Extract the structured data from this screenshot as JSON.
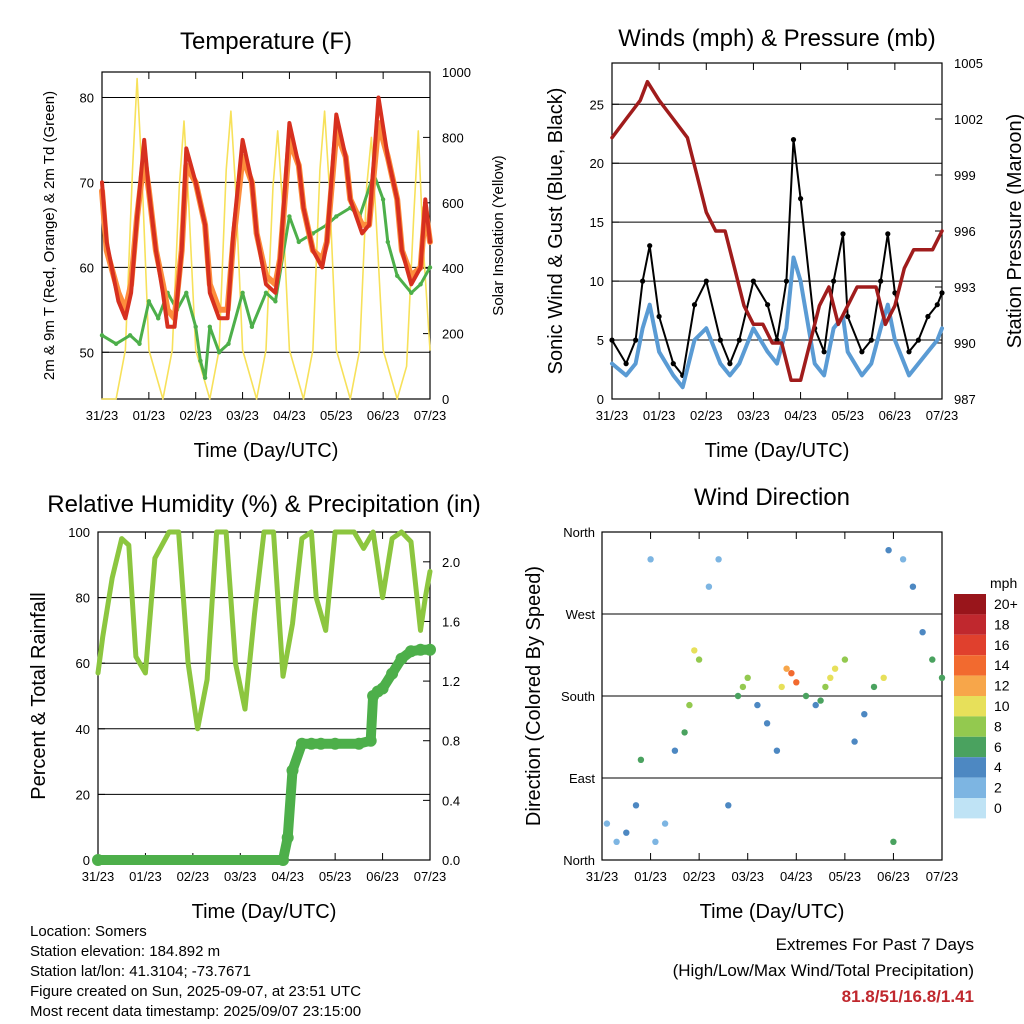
{
  "x_ticks": [
    "31/23",
    "01/23",
    "02/23",
    "03/23",
    "04/23",
    "05/23",
    "06/23",
    "07/23"
  ],
  "colors": {
    "temp2m": "#d7301f",
    "temp9m": "#fd8d3c",
    "dewpoint": "#4daf4a",
    "solar": "#f7e15a",
    "wind": "#5a9bd4",
    "gust": "#000000",
    "pressure": "#a01c1c",
    "rh": "#8cc63f",
    "precip": "#4daf4a"
  },
  "panels": {
    "temperature": {
      "title": "Temperature (F)",
      "xlabel": "Time (Day/UTC)",
      "ylabel_left": "2m & 9m T (Red, Orange) & 2m Td (Green)",
      "ylabel_right": "Solar Insolation (Yellow)"
    },
    "winds": {
      "title": "Winds (mph) & Pressure (mb)",
      "xlabel": "Time (Day/UTC)",
      "ylabel_left": "Sonic Wind & Gust (Blue, Black)",
      "ylabel_right": "Station Pressure (Maroon)"
    },
    "humidity": {
      "title": "Relative Humidity (%) & Precipitation (in)",
      "xlabel": "Time (Day/UTC)",
      "ylabel_left": "Percent & Total Rainfall"
    },
    "direction": {
      "title": "Wind Direction",
      "xlabel": "Time (Day/UTC)",
      "ylabel_left": "Direction (Colored By Speed)",
      "legend_title": "mph"
    }
  },
  "info": {
    "location": "Location: Somers",
    "elevation": "Station elevation: 184.892 m",
    "latlon": "Station lat/lon: 41.3104; -73.7671",
    "created": "Figure created on Sun, 2025-09-07, at 23:51 UTC",
    "recent": "Most recent data timestamp: 2025/09/07 23:15:00"
  },
  "extremes": {
    "line1": "Extremes For Past 7 Days",
    "line2": "(High/Low/Max Wind/Total Precipitation)",
    "values": "81.8/51/16.8/1.41"
  },
  "chart_data": [
    {
      "type": "line",
      "title": "Temperature (F)",
      "xlabel": "Time (Day/UTC)",
      "ylabel": "2m & 9m T (Red, Orange) & 2m Td (Green)",
      "ylabel_right": "Solar Insolation (Yellow)",
      "xlim": [
        0,
        7
      ],
      "ylim": [
        44.5,
        83
      ],
      "ylim_right": [
        0,
        1000
      ],
      "yticks": [
        50,
        60,
        70,
        80
      ],
      "yticks_right": [
        0,
        200,
        400,
        600,
        800,
        1000
      ],
      "grid": true,
      "series": [
        {
          "name": "2m T",
          "axis": "left",
          "x": [
            0,
            0.1,
            0.35,
            0.5,
            0.62,
            0.75,
            0.9,
            1.0,
            1.15,
            1.3,
            1.4,
            1.55,
            1.7,
            1.8,
            2.0,
            2.2,
            2.3,
            2.5,
            2.68,
            2.8,
            3.0,
            3.2,
            3.3,
            3.5,
            3.7,
            3.8,
            4.0,
            4.2,
            4.3,
            4.5,
            4.7,
            4.8,
            5.0,
            5.2,
            5.3,
            5.55,
            5.7,
            5.9,
            6.1,
            6.3,
            6.4,
            6.6,
            6.8,
            6.9,
            7.0
          ],
          "y": [
            70,
            63,
            56,
            54,
            57,
            66,
            75,
            69,
            62,
            57,
            53,
            53,
            62,
            74,
            70,
            65,
            57,
            54,
            54,
            64,
            75,
            70,
            64,
            58,
            57,
            61,
            77,
            72,
            67,
            62,
            60,
            63,
            78,
            73,
            68,
            64,
            65,
            80,
            73,
            68,
            62,
            58,
            60,
            68,
            63
          ]
        },
        {
          "name": "9m T",
          "axis": "left",
          "x": [
            0,
            0.1,
            0.35,
            0.5,
            0.62,
            0.75,
            0.9,
            1.0,
            1.15,
            1.3,
            1.4,
            1.55,
            1.7,
            1.8,
            2.0,
            2.2,
            2.3,
            2.5,
            2.68,
            2.8,
            3.0,
            3.2,
            3.3,
            3.5,
            3.7,
            3.8,
            4.0,
            4.2,
            4.3,
            4.5,
            4.7,
            4.8,
            5.0,
            5.2,
            5.3,
            5.55,
            5.7,
            5.9,
            6.1,
            6.3,
            6.4,
            6.6,
            6.8,
            6.9,
            7.0
          ],
          "y": [
            69,
            62,
            57,
            55,
            58,
            66,
            73,
            69,
            62,
            58,
            55,
            54,
            62,
            72,
            70,
            65,
            58,
            55,
            55,
            63,
            73,
            70,
            64,
            59,
            58,
            61,
            75,
            72,
            67,
            62,
            61,
            63,
            76,
            73,
            68,
            65,
            65,
            77,
            73,
            68,
            62,
            59,
            60,
            67,
            63
          ]
        },
        {
          "name": "2m Td",
          "axis": "left",
          "x": [
            0,
            0.3,
            0.6,
            0.8,
            1.0,
            1.2,
            1.4,
            1.6,
            1.8,
            2.0,
            2.1,
            2.2,
            2.3,
            2.5,
            2.7,
            3.0,
            3.2,
            3.5,
            3.7,
            4.0,
            4.2,
            4.5,
            4.8,
            5.0,
            5.3,
            5.5,
            5.8,
            6.0,
            6.1,
            6.3,
            6.6,
            6.8,
            7.0
          ],
          "y": [
            52,
            51,
            52,
            51,
            56,
            54,
            57,
            55,
            57,
            53,
            49,
            47,
            53,
            50,
            51,
            57,
            53,
            57,
            56,
            66,
            63,
            64,
            65,
            66,
            67,
            66,
            71,
            68,
            63,
            59,
            57,
            58,
            60
          ]
        },
        {
          "name": "Solar",
          "axis": "right",
          "x": [
            0,
            0.3,
            0.5,
            0.65,
            0.75,
            0.85,
            1.0,
            1.3,
            1.5,
            1.65,
            1.75,
            1.85,
            2.0,
            2.3,
            2.5,
            2.65,
            2.75,
            2.85,
            3.0,
            3.3,
            3.5,
            3.65,
            3.75,
            3.85,
            4.0,
            4.3,
            4.5,
            4.65,
            4.75,
            4.85,
            5.0,
            5.3,
            5.5,
            5.65,
            5.75,
            5.85,
            6.0,
            6.3,
            6.5,
            6.65,
            6.75,
            6.85,
            7.0
          ],
          "y": [
            0,
            0,
            150,
            700,
            980,
            700,
            150,
            0,
            150,
            650,
            850,
            600,
            150,
            0,
            150,
            700,
            880,
            650,
            150,
            0,
            150,
            650,
            820,
            600,
            150,
            0,
            150,
            700,
            880,
            650,
            150,
            0,
            150,
            650,
            800,
            550,
            150,
            0,
            100,
            550,
            820,
            480,
            150
          ]
        }
      ]
    },
    {
      "type": "line",
      "title": "Winds (mph) & Pressure (mb)",
      "xlabel": "Time (Day/UTC)",
      "ylabel": "Sonic Wind & Gust (Blue, Black)",
      "ylabel_right": "Station Pressure (Maroon)",
      "xlim": [
        0,
        7
      ],
      "ylim": [
        0,
        28.5
      ],
      "ylim_right": [
        987,
        1005
      ],
      "yticks": [
        0,
        5,
        10,
        15,
        20,
        25
      ],
      "yticks_right": [
        987,
        990,
        993,
        996,
        999,
        1002,
        1005
      ],
      "grid": true,
      "series": [
        {
          "name": "Wind",
          "axis": "left",
          "x": [
            0,
            0.3,
            0.5,
            0.65,
            0.8,
            1.0,
            1.3,
            1.5,
            1.75,
            2.0,
            2.3,
            2.5,
            2.7,
            3.0,
            3.3,
            3.5,
            3.7,
            3.85,
            4.0,
            4.3,
            4.5,
            4.7,
            4.9,
            5.0,
            5.3,
            5.5,
            5.7,
            5.85,
            6.0,
            6.3,
            6.5,
            6.7,
            6.9,
            7.0
          ],
          "y": [
            3,
            2,
            3,
            6,
            8,
            4,
            2,
            1,
            5,
            6,
            3,
            2,
            3,
            6,
            4,
            3,
            6,
            12,
            10,
            3,
            2,
            6,
            7,
            4,
            2,
            3,
            6,
            8,
            5,
            2,
            3,
            4,
            5,
            6
          ]
        },
        {
          "name": "Gust",
          "axis": "left",
          "x": [
            0,
            0.3,
            0.5,
            0.65,
            0.8,
            1.0,
            1.3,
            1.5,
            1.75,
            2.0,
            2.3,
            2.5,
            2.7,
            3.0,
            3.3,
            3.5,
            3.7,
            3.85,
            4.0,
            4.3,
            4.5,
            4.7,
            4.9,
            5.0,
            5.3,
            5.5,
            5.7,
            5.85,
            6.0,
            6.3,
            6.5,
            6.7,
            6.9,
            7.0
          ],
          "y": [
            5,
            3,
            5,
            10,
            13,
            7,
            3,
            2,
            8,
            10,
            5,
            3,
            5,
            10,
            8,
            5,
            10,
            22,
            17,
            6,
            4,
            10,
            14,
            7,
            4,
            5,
            10,
            14,
            9,
            4,
            5,
            7,
            8,
            9
          ]
        },
        {
          "name": "Pressure",
          "axis": "right",
          "x": [
            0,
            0.3,
            0.6,
            0.75,
            1.0,
            1.3,
            1.6,
            1.8,
            2.0,
            2.2,
            2.4,
            2.6,
            2.8,
            3.0,
            3.2,
            3.4,
            3.6,
            3.8,
            4.0,
            4.2,
            4.4,
            4.6,
            4.8,
            5.0,
            5.2,
            5.4,
            5.6,
            5.8,
            6.0,
            6.2,
            6.4,
            6.6,
            6.8,
            7.0
          ],
          "y": [
            1001,
            1002,
            1003,
            1004,
            1003,
            1002,
            1001,
            999,
            997,
            996,
            996,
            994,
            992,
            991,
            991,
            990,
            990,
            988,
            988,
            990,
            992,
            993,
            991,
            992,
            993,
            993,
            993,
            991,
            992,
            994,
            995,
            995,
            995,
            996
          ]
        }
      ]
    },
    {
      "type": "line",
      "title": "Relative Humidity (%) & Precipitation (in)",
      "xlabel": "Time (Day/UTC)",
      "ylabel": "Percent & Total Rainfall",
      "xlim": [
        0,
        7
      ],
      "ylim": [
        0,
        100
      ],
      "ylim_right": [
        0,
        2.2
      ],
      "yticks": [
        0,
        20,
        40,
        60,
        80,
        100
      ],
      "yticks_right": [
        0.0,
        0.4,
        0.8,
        1.2,
        1.6,
        2.0
      ],
      "grid": true,
      "series": [
        {
          "name": "RH",
          "axis": "left",
          "x": [
            0,
            0.1,
            0.3,
            0.5,
            0.65,
            0.8,
            1.0,
            1.2,
            1.5,
            1.7,
            1.9,
            2.1,
            2.3,
            2.5,
            2.7,
            2.9,
            3.1,
            3.3,
            3.5,
            3.7,
            3.9,
            4.1,
            4.3,
            4.5,
            4.6,
            4.8,
            5.0,
            5.2,
            5.4,
            5.6,
            5.8,
            6.0,
            6.2,
            6.4,
            6.6,
            6.8,
            6.9,
            7.0
          ],
          "y": [
            57,
            68,
            86,
            98,
            96,
            62,
            57,
            92,
            100,
            100,
            60,
            40,
            55,
            100,
            100,
            60,
            46,
            75,
            100,
            100,
            56,
            72,
            98,
            100,
            80,
            70,
            100,
            100,
            100,
            95,
            100,
            80,
            98,
            100,
            97,
            70,
            80,
            88
          ]
        },
        {
          "name": "Total Precipitation",
          "axis": "right",
          "x": [
            0,
            3.9,
            4.0,
            4.1,
            4.3,
            4.5,
            4.7,
            5.0,
            5.5,
            5.75,
            5.8,
            5.9,
            6.0,
            6.2,
            6.4,
            6.6,
            6.8,
            7.0
          ],
          "y": [
            0,
            0,
            0.15,
            0.6,
            0.78,
            0.78,
            0.78,
            0.78,
            0.78,
            0.8,
            1.1,
            1.13,
            1.15,
            1.25,
            1.35,
            1.4,
            1.41,
            1.41
          ]
        }
      ]
    },
    {
      "type": "scatter",
      "title": "Wind Direction",
      "xlabel": "Time (Day/UTC)",
      "ylabel": "Direction (Colored By Speed)",
      "xlim": [
        0,
        7
      ],
      "ycategories": [
        "North",
        "East",
        "South",
        "West",
        "North"
      ],
      "color_legend": {
        "title": "mph",
        "labels": [
          "20+",
          "18",
          "16",
          "14",
          "12",
          "10",
          "8",
          "6",
          "4",
          "2",
          "0"
        ],
        "colors": [
          "#99151b",
          "#c0282e",
          "#e0402d",
          "#f26a2f",
          "#f7a64a",
          "#e7e05a",
          "#93c94f",
          "#4aa25f",
          "#4d88c2",
          "#7db5e2",
          "#bfe3f5"
        ]
      },
      "series": [
        {
          "name": "Direction",
          "x": [
            0.1,
            0.3,
            0.5,
            0.7,
            0.8,
            1.0,
            1.1,
            1.3,
            1.5,
            1.7,
            1.8,
            1.9,
            2.0,
            2.2,
            2.4,
            2.6,
            2.8,
            2.9,
            3.0,
            3.2,
            3.4,
            3.6,
            3.7,
            3.8,
            3.9,
            4.0,
            4.2,
            4.4,
            4.5,
            4.6,
            4.7,
            4.8,
            5.0,
            5.2,
            5.4,
            5.6,
            5.8,
            5.9,
            6.0,
            6.2,
            6.4,
            6.6,
            6.8,
            7.0
          ],
          "y": [
            40,
            20,
            30,
            60,
            110,
            330,
            20,
            40,
            120,
            140,
            170,
            230,
            220,
            300,
            330,
            60,
            180,
            190,
            200,
            170,
            150,
            120,
            190,
            210,
            205,
            195,
            180,
            170,
            175,
            190,
            200,
            210,
            220,
            130,
            160,
            190,
            200,
            340,
            20,
            330,
            300,
            250,
            220,
            200
          ],
          "speed": [
            2,
            1,
            3,
            4,
            6,
            2,
            1,
            2,
            4,
            6,
            8,
            10,
            8,
            2,
            1,
            3,
            6,
            8,
            7,
            4,
            3,
            4,
            10,
            12,
            14,
            13,
            6,
            4,
            5,
            8,
            10,
            9,
            7,
            3,
            4,
            6,
            9,
            3,
            6,
            2,
            3,
            4,
            5,
            6
          ]
        }
      ]
    }
  ]
}
